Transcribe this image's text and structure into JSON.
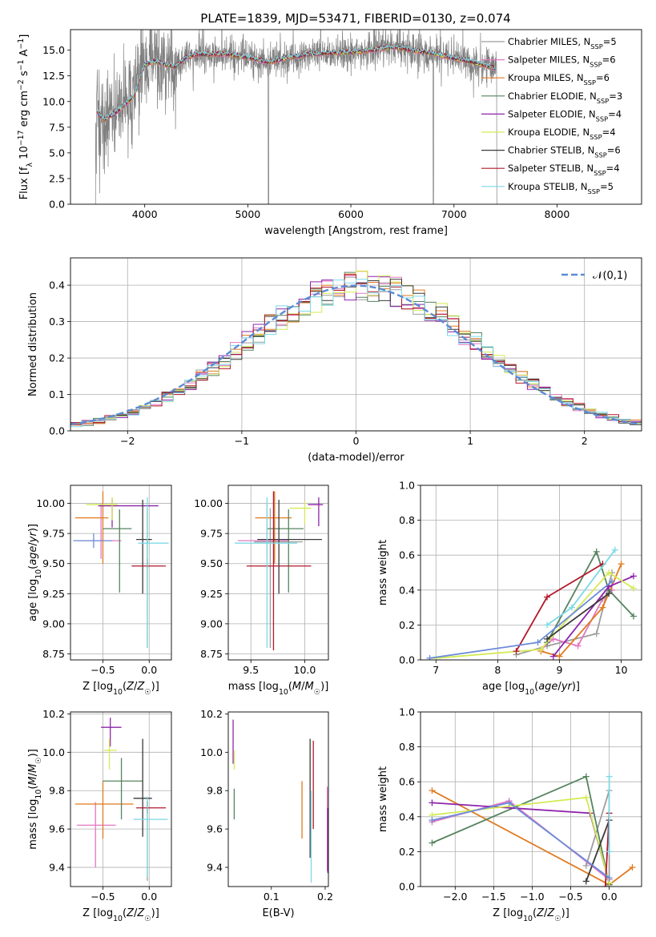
{
  "figure_title": "PLATE=1839, MJD=53471, FIBERID=0130, z=0.074",
  "fits": [
    {
      "label": "Chabrier MILES",
      "n": "5",
      "color": "#9e9e9e"
    },
    {
      "label": "Salpeter MILES",
      "n": "6",
      "color": "#e377c2"
    },
    {
      "label": "Kroupa MILES",
      "n": "6",
      "color": "#e07b1f"
    },
    {
      "label": "Chabrier ELODIE",
      "n": "3",
      "color": "#55845e"
    },
    {
      "label": "Salpeter ELODIE",
      "n": "4",
      "color": "#8e24aa"
    },
    {
      "label": "Kroupa ELODIE",
      "n": "4",
      "color": "#d4ea55"
    },
    {
      "label": "Chabrier STELIB",
      "n": "6",
      "color": "#3a3a3a"
    },
    {
      "label": "Salpeter STELIB",
      "n": "4",
      "color": "#b2182b"
    },
    {
      "label": "Kroupa STELIB",
      "n": "5",
      "color": "#7dd9e6"
    }
  ],
  "chart_data": [
    {
      "id": "spectrum",
      "type": "line",
      "xlabel": "wavelength [Angstrom, rest frame]",
      "ylabel": "Flux [f_λ 10^-17 erg cm^-2 s^-1 A^-1]",
      "xlim": [
        3280,
        8820
      ],
      "ylim": [
        0,
        17
      ],
      "xticks": [
        4000,
        5000,
        6000,
        7000,
        8000
      ],
      "yticks": [
        0.0,
        2.5,
        5.0,
        7.5,
        10.0,
        12.5,
        15.0
      ],
      "data_color": "#7f7f7f",
      "model_x": [
        3540,
        3600,
        3700,
        3800,
        3900,
        4000,
        4100,
        4200,
        4300,
        4400,
        4500,
        4600,
        4800,
        5000,
        5200,
        5400,
        5600,
        5800,
        6000,
        6200,
        6400,
        6600,
        6800,
        7000,
        7200,
        7400
      ],
      "model_y": [
        9.0,
        8.2,
        8.8,
        9.6,
        10.6,
        13.6,
        13.9,
        13.6,
        13.4,
        14.3,
        14.6,
        14.6,
        14.6,
        14.3,
        13.8,
        14.3,
        14.6,
        14.7,
        14.8,
        15.0,
        15.3,
        15.0,
        14.7,
        14.2,
        13.8,
        13.2
      ],
      "data_range": [
        3520,
        7420
      ],
      "data_gaps": [
        5200,
        6800
      ],
      "grid": false,
      "legend_position": "right"
    },
    {
      "id": "residuals",
      "type": "step",
      "xlabel": "(data-model)/error",
      "ylabel": "Normed distribution",
      "xlim": [
        -2.5,
        2.5
      ],
      "ylim": [
        0,
        0.475
      ],
      "xticks": [
        -2,
        -1,
        0,
        1,
        2
      ],
      "yticks": [
        0.0,
        0.1,
        0.2,
        0.3,
        0.4
      ],
      "bin_width": 0.1,
      "reference_curve": {
        "label": "𝒩(0,1)",
        "mean": 0,
        "sigma": 1,
        "color": "#5b8bd6"
      },
      "grid": true,
      "legend_position": "top-right"
    },
    {
      "id": "age_vs_Z",
      "type": "errorbar",
      "xlabel": "Z [log10(Z/Z☉)]",
      "ylabel": "age  [log10(age/yr)]",
      "xlim": [
        -0.85,
        0.24
      ],
      "ylim": [
        8.7,
        10.15
      ],
      "xticks": [
        -0.5,
        0.0
      ],
      "yticks": [
        8.75,
        9.0,
        9.25,
        9.5,
        9.75,
        10.0
      ],
      "points": [
        {
          "fit": 0,
          "x": -0.02,
          "xerr": [
            0.01,
            0.01
          ],
          "y": 9.68,
          "yerr": [
            0.88,
            0.28
          ]
        },
        {
          "fit": 1,
          "x": -0.52,
          "xerr": [
            0.25,
            0.22
          ],
          "y": 9.69,
          "yerr": [
            0.15,
            0.31
          ]
        },
        {
          "fit": 2,
          "x": -0.5,
          "xerr": [
            0.3,
            0.06
          ],
          "y": 9.88,
          "yerr": [
            0.38,
            0.22
          ]
        },
        {
          "fit": 3,
          "x": -0.32,
          "xerr": [
            0.18,
            0.13
          ],
          "y": 9.79,
          "yerr": [
            0.53,
            0.16
          ]
        },
        {
          "fit": 4,
          "x": -0.4,
          "xerr": [
            0.15,
            0.5
          ],
          "y": 9.98,
          "yerr": [
            0.18,
            0.06
          ]
        },
        {
          "fit": 5,
          "x": -0.4,
          "xerr": [
            0.28,
            0.06
          ],
          "y": 9.99,
          "yerr": [
            0.13,
            0.06
          ]
        },
        {
          "fit": 6,
          "x": -0.07,
          "xerr": [
            0.07,
            0.1
          ],
          "y": 9.7,
          "yerr": [
            0.45,
            0.33
          ]
        },
        {
          "fit": 7,
          "x": -0.02,
          "xerr": [
            0.17,
            0.2
          ],
          "y": 9.48,
          "yerr": [
            0.02,
            0.06
          ]
        },
        {
          "fit": 8,
          "x": -0.02,
          "xerr": [
            0.1,
            0.23
          ],
          "y": 9.67,
          "yerr": [
            0.87,
            0.38
          ]
        },
        {
          "fit": 0,
          "x": -0.6,
          "xerr": [
            0.22,
            0.2
          ],
          "y": 9.69,
          "yerr": [
            0.06,
            0.06
          ],
          "color_override": "#6b8cd8"
        }
      ],
      "grid": true
    },
    {
      "id": "age_vs_mass",
      "type": "errorbar",
      "xlabel": "mass [log10(M/M☉)]",
      "ylabel": "",
      "xlim": [
        9.29,
        10.22
      ],
      "ylim": [
        8.7,
        10.15
      ],
      "xticks": [
        9.5,
        10.0
      ],
      "yticks": [
        8.75,
        9.0,
        9.25,
        9.5,
        9.75,
        10.0
      ],
      "points": [
        {
          "fit": 0,
          "x": 9.68,
          "xerr": [
            0.15,
            0.3
          ],
          "y": 9.68,
          "yerr": [
            0.88,
            0.28
          ]
        },
        {
          "fit": 1,
          "x": 9.65,
          "xerr": [
            0.27,
            0.2
          ],
          "y": 9.69,
          "yerr": [
            0.15,
            0.31
          ]
        },
        {
          "fit": 2,
          "x": 9.72,
          "xerr": [
            0.18,
            0.16
          ],
          "y": 9.88,
          "yerr": [
            0.38,
            0.22
          ]
        },
        {
          "fit": 3,
          "x": 9.85,
          "xerr": [
            0.2,
            0.14
          ],
          "y": 9.79,
          "yerr": [
            0.53,
            0.16
          ]
        },
        {
          "fit": 4,
          "x": 10.13,
          "xerr": [
            0.1,
            0.04
          ],
          "y": 9.99,
          "yerr": [
            0.18,
            0.06
          ]
        },
        {
          "fit": 5,
          "x": 10.0,
          "xerr": [
            0.14,
            0.06
          ],
          "y": 9.96,
          "yerr": [
            0.13,
            0.06
          ]
        },
        {
          "fit": 6,
          "x": 9.76,
          "xerr": [
            0.2,
            0.4
          ],
          "y": 9.7,
          "yerr": [
            0.45,
            0.33
          ]
        },
        {
          "fit": 7,
          "x": 9.71,
          "xerr": [
            0.25,
            0.35
          ],
          "y": 9.48,
          "yerr": [
            0.7,
            0.62
          ]
        },
        {
          "fit": 8,
          "x": 9.65,
          "xerr": [
            0.3,
            0.28
          ],
          "y": 9.67,
          "yerr": [
            0.87,
            0.38
          ]
        }
      ],
      "grid": true
    },
    {
      "id": "weight_vs_age",
      "type": "line",
      "xlabel": "age  [log10(age/yr)]",
      "ylabel": "mass weight",
      "xlim": [
        6.75,
        10.33
      ],
      "ylim": [
        0,
        1
      ],
      "xticks": [
        7,
        8,
        9,
        10
      ],
      "yticks": [
        0.0,
        0.2,
        0.4,
        0.6,
        0.8,
        1.0
      ],
      "series": [
        {
          "fit": 0,
          "x": [
            8.3,
            8.8,
            9.6,
            9.85
          ],
          "y": [
            0.03,
            0.08,
            0.15,
            0.5
          ]
        },
        {
          "fit": 1,
          "x": [
            8.7,
            8.9,
            9.3,
            9.7,
            9.85
          ],
          "y": [
            0.06,
            0.12,
            0.08,
            0.35,
            0.4
          ]
        },
        {
          "fit": 2,
          "x": [
            8.7,
            9.0,
            9.7,
            10.0
          ],
          "y": [
            0.05,
            0.02,
            0.3,
            0.55
          ]
        },
        {
          "fit": 3,
          "x": [
            8.8,
            9.6,
            9.8,
            10.2
          ],
          "y": [
            0.1,
            0.62,
            0.4,
            0.25
          ]
        },
        {
          "fit": 4,
          "x": [
            8.9,
            9.8,
            10.2
          ],
          "y": [
            0.02,
            0.42,
            0.48
          ]
        },
        {
          "fit": 5,
          "x": [
            7.0,
            8.7,
            9.8,
            10.2
          ],
          "y": [
            0.01,
            0.06,
            0.5,
            0.41
          ]
        },
        {
          "fit": 6,
          "x": [
            8.8,
            9.8
          ],
          "y": [
            0.12,
            0.38
          ]
        },
        {
          "fit": 7,
          "x": [
            8.3,
            8.8,
            9.7
          ],
          "y": [
            0.05,
            0.36,
            0.55
          ]
        },
        {
          "fit": 8,
          "x": [
            8.8,
            9.2,
            9.9
          ],
          "y": [
            0.2,
            0.3,
            0.63
          ]
        },
        {
          "fit": 0,
          "x": [
            6.9,
            8.65,
            9.85
          ],
          "y": [
            0.01,
            0.1,
            0.45
          ],
          "color_override": "#6b8cd8"
        }
      ],
      "grid": true
    },
    {
      "id": "mass_vs_Z",
      "type": "errorbar",
      "xlabel": "Z [log10(Z/Z☉)]",
      "ylabel": "mass [log10(M/M☉)]",
      "xlim": [
        -0.85,
        0.24
      ],
      "ylim": [
        9.3,
        10.21
      ],
      "xticks": [
        -0.5,
        0.0
      ],
      "yticks": [
        9.4,
        9.6,
        9.8,
        10.0,
        10.2
      ],
      "points": [
        {
          "fit": 0,
          "x": -0.02,
          "xerr": [
            0.01,
            0.01
          ],
          "y": 9.65,
          "yerr": [
            0.32,
            0.1
          ]
        },
        {
          "fit": 1,
          "x": -0.58,
          "xerr": [
            0.2,
            0.22
          ],
          "y": 9.62,
          "yerr": [
            0.22,
            0.12
          ]
        },
        {
          "fit": 2,
          "x": -0.5,
          "xerr": [
            0.3,
            0.33
          ],
          "y": 9.73,
          "yerr": [
            0.18,
            0.12
          ]
        },
        {
          "fit": 3,
          "x": -0.3,
          "xerr": [
            0.2,
            0.23
          ],
          "y": 9.85,
          "yerr": [
            0.2,
            0.12
          ]
        },
        {
          "fit": 4,
          "x": -0.42,
          "xerr": [
            0.1,
            0.12
          ],
          "y": 10.13,
          "yerr": [
            0.1,
            0.05
          ]
        },
        {
          "fit": 5,
          "x": -0.43,
          "xerr": [
            0.06,
            0.08
          ],
          "y": 10.01,
          "yerr": [
            0.1,
            0.06
          ]
        },
        {
          "fit": 6,
          "x": -0.07,
          "xerr": [
            0.1,
            0.1
          ],
          "y": 9.76,
          "yerr": [
            0.2,
            0.31
          ]
        },
        {
          "fit": 7,
          "x": -0.02,
          "xerr": [
            0.12,
            0.2
          ],
          "y": 9.71,
          "yerr": [
            0.03,
            0.03
          ]
        },
        {
          "fit": 8,
          "x": -0.02,
          "xerr": [
            0.15,
            0.22
          ],
          "y": 9.65,
          "yerr": [
            0.3,
            0.12
          ]
        }
      ],
      "grid": true
    },
    {
      "id": "mass_vs_ebv",
      "type": "errorbar",
      "xlabel": "E(B-V)",
      "ylabel": "",
      "xlim": [
        0.02,
        0.206
      ],
      "ylim": [
        9.3,
        10.21
      ],
      "xticks": [
        0.1,
        0.2
      ],
      "yticks": [
        9.4,
        9.6,
        9.8,
        10.0,
        10.2
      ],
      "points": [
        {
          "fit": 4,
          "x": 0.029,
          "xerr": [
            0,
            0
          ],
          "y": 10.04,
          "yerr": [
            0.1,
            0.13
          ]
        },
        {
          "fit": 5,
          "x": 0.031,
          "xerr": [
            0,
            0
          ],
          "y": 9.97,
          "yerr": [
            0.06,
            0.04
          ]
        },
        {
          "fit": 3,
          "x": 0.031,
          "xerr": [
            0,
            0
          ],
          "y": 9.73,
          "yerr": [
            0.08,
            0.08
          ]
        },
        {
          "fit": 2,
          "x": 0.157,
          "xerr": [
            0,
            0
          ],
          "y": 9.7,
          "yerr": [
            0.15,
            0.15
          ]
        },
        {
          "fit": 6,
          "x": 0.172,
          "xerr": [
            0,
            0
          ],
          "y": 9.75,
          "yerr": [
            0.3,
            0.32
          ]
        },
        {
          "fit": 8,
          "x": 0.174,
          "xerr": [
            0,
            0
          ],
          "y": 9.6,
          "yerr": [
            0.28,
            0.2
          ]
        },
        {
          "fit": 7,
          "x": 0.178,
          "xerr": [
            0,
            0
          ],
          "y": 9.8,
          "yerr": [
            0.2,
            0.26
          ]
        },
        {
          "fit": 1,
          "x": 0.204,
          "xerr": [
            0,
            0
          ],
          "y": 9.6,
          "yerr": [
            0.22,
            0.22
          ]
        },
        {
          "fit": 4,
          "x": 0.205,
          "xerr": [
            0,
            0
          ],
          "y": 9.55,
          "yerr": [
            0.18,
            0.16
          ]
        }
      ],
      "grid": false
    },
    {
      "id": "weight_vs_Z",
      "type": "line",
      "xlabel": "Z [log10(Z/Z☉)]",
      "ylabel": "mass weight",
      "xlim": [
        -2.45,
        0.42
      ],
      "ylim": [
        0,
        1
      ],
      "xticks": [
        -2.0,
        -1.5,
        -1.0,
        -0.5,
        0.0
      ],
      "yticks": [
        0.0,
        0.2,
        0.4,
        0.6,
        0.8,
        1.0
      ],
      "series": [
        {
          "fit": 0,
          "x": [
            -0.3,
            0.0,
            0.0
          ],
          "y": [
            0.12,
            0.55,
            0.02
          ]
        },
        {
          "fit": 1,
          "x": [
            -2.3,
            -1.3,
            0.0
          ],
          "y": [
            0.37,
            0.49,
            0.04
          ]
        },
        {
          "fit": 2,
          "x": [
            -2.3,
            0.0,
            0.3
          ],
          "y": [
            0.55,
            0.01,
            0.11
          ]
        },
        {
          "fit": 3,
          "x": [
            -2.3,
            -0.3,
            0.0
          ],
          "y": [
            0.25,
            0.63,
            0.01
          ]
        },
        {
          "fit": 4,
          "x": [
            -2.3,
            -0.25,
            0.0
          ],
          "y": [
            0.48,
            0.42,
            0.02
          ]
        },
        {
          "fit": 5,
          "x": [
            -2.3,
            -0.3,
            0.0
          ],
          "y": [
            0.41,
            0.51,
            0.02
          ]
        },
        {
          "fit": 6,
          "x": [
            -0.3,
            0.0
          ],
          "y": [
            0.03,
            0.38
          ]
        },
        {
          "fit": 7,
          "x": [
            -0.05,
            0.0
          ],
          "y": [
            0.0,
            0.42
          ]
        },
        {
          "fit": 8,
          "x": [
            0.0,
            0.0
          ],
          "y": [
            0.2,
            0.63
          ]
        },
        {
          "fit": 0,
          "x": [
            -2.3,
            -1.3,
            0.0
          ],
          "y": [
            0.38,
            0.48,
            0.05
          ],
          "color_override": "#6b8cd8"
        }
      ],
      "grid": true
    }
  ]
}
